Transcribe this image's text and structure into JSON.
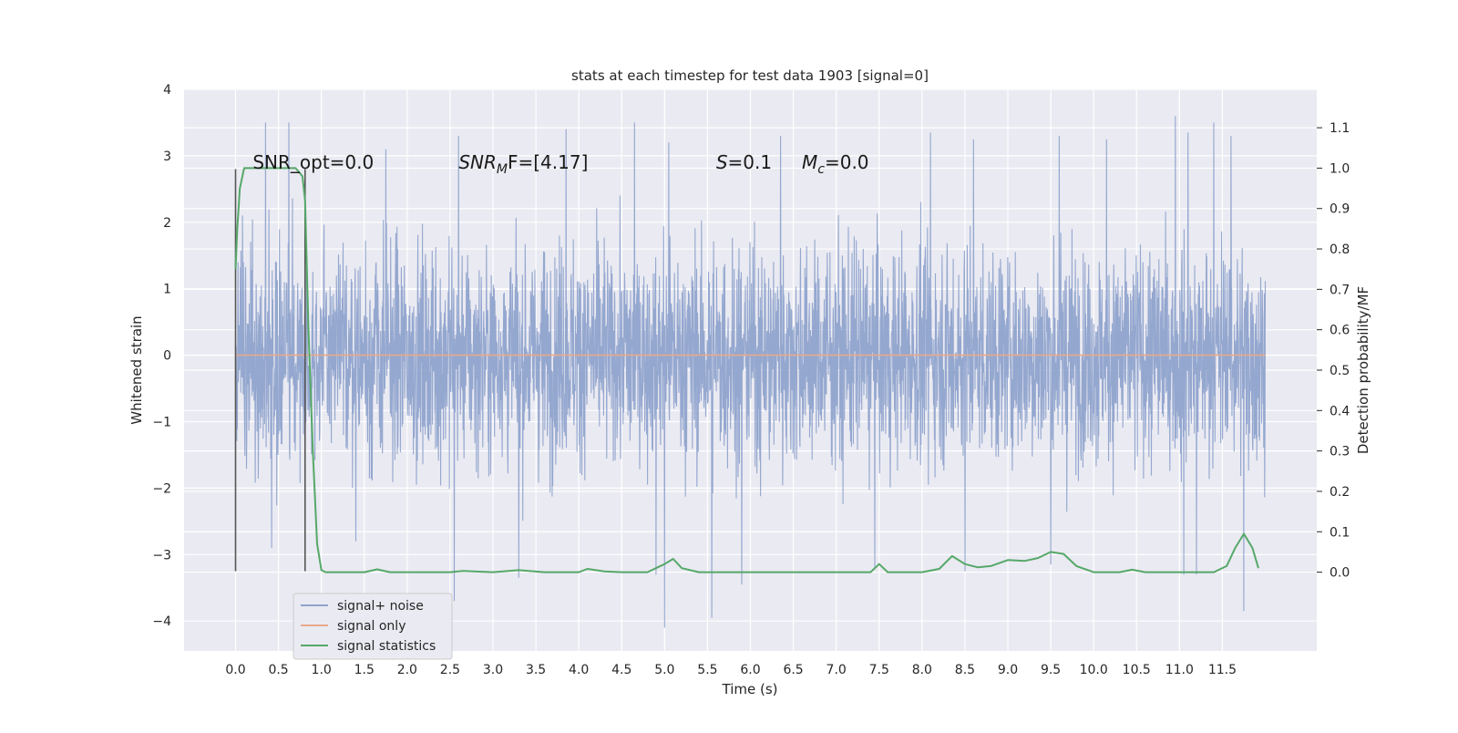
{
  "chart_data": {
    "type": "line",
    "title": "stats at each timestep for test data 1903 [signal=0]",
    "xlabel": "Time (s)",
    "ylabel_left": "Whitened strain",
    "ylabel_right": "Detection probability/MF",
    "xlim": [
      -0.6,
      12.6
    ],
    "ylim_left": [
      -4.45,
      4.0
    ],
    "ylim_right": [
      -0.195,
      1.195
    ],
    "x_ticks": [
      "0.0",
      "0.5",
      "1.0",
      "1.5",
      "2.0",
      "2.5",
      "3.0",
      "3.5",
      "4.0",
      "4.5",
      "5.0",
      "5.5",
      "6.0",
      "6.5",
      "7.0",
      "7.5",
      "8.0",
      "8.5",
      "9.0",
      "9.5",
      "10.0",
      "10.5",
      "11.0",
      "11.5"
    ],
    "x_tick_values": [
      0.0,
      0.5,
      1.0,
      1.5,
      2.0,
      2.5,
      3.0,
      3.5,
      4.0,
      4.5,
      5.0,
      5.5,
      6.0,
      6.5,
      7.0,
      7.5,
      8.0,
      8.5,
      9.0,
      9.5,
      10.0,
      10.5,
      11.0,
      11.5
    ],
    "y_ticks_left": [
      "−4",
      "−3",
      "−2",
      "−1",
      "0",
      "1",
      "2",
      "3",
      "4"
    ],
    "y_tick_values_left": [
      -4,
      -3,
      -2,
      -1,
      0,
      1,
      2,
      3,
      4
    ],
    "y_ticks_right": [
      "0.0",
      "0.1",
      "0.2",
      "0.3",
      "0.4",
      "0.5",
      "0.6",
      "0.7",
      "0.8",
      "0.9",
      "1.0",
      "1.1"
    ],
    "y_tick_values_right": [
      0.0,
      0.1,
      0.2,
      0.3,
      0.4,
      0.5,
      0.6,
      0.7,
      0.8,
      0.9,
      1.0,
      1.1
    ],
    "grid": true,
    "legend_position": "lower-left",
    "legend": [
      "signal+ noise",
      "signal only",
      "signal statistics"
    ],
    "series": [
      {
        "name": "signal+ noise",
        "color": "#8fa3cc",
        "axis": "left",
        "x_range": [
          0.0,
          12.0
        ],
        "typical_envelope": [
          -2.2,
          2.2
        ],
        "extremes": [
          -4.1,
          3.6
        ],
        "peak_samples": [
          [
            0.35,
            3.5
          ],
          [
            0.62,
            3.5
          ],
          [
            1.75,
            3.1
          ],
          [
            2.6,
            3.3
          ],
          [
            3.85,
            3.4
          ],
          [
            4.65,
            3.5
          ],
          [
            5.05,
            3.2
          ],
          [
            6.35,
            3.3
          ],
          [
            8.1,
            3.35
          ],
          [
            8.6,
            3.25
          ],
          [
            9.6,
            3.3
          ],
          [
            10.15,
            3.25
          ],
          [
            10.95,
            3.6
          ],
          [
            11.1,
            3.35
          ],
          [
            11.4,
            3.5
          ],
          [
            11.6,
            3.3
          ]
        ],
        "trough_samples": [
          [
            0.42,
            -2.9
          ],
          [
            1.4,
            -2.8
          ],
          [
            2.55,
            -3.7
          ],
          [
            3.3,
            -3.35
          ],
          [
            4.9,
            -3.3
          ],
          [
            5.0,
            -4.1
          ],
          [
            5.55,
            -3.95
          ],
          [
            5.9,
            -3.45
          ],
          [
            7.45,
            -3.2
          ],
          [
            8.5,
            -3.25
          ],
          [
            9.5,
            -3.15
          ],
          [
            11.05,
            -3.3
          ],
          [
            11.2,
            -3.3
          ],
          [
            11.75,
            -3.85
          ]
        ]
      },
      {
        "name": "signal only",
        "color": "#e8a98a",
        "axis": "left",
        "x": [
          0.0,
          12.0
        ],
        "values": [
          0.0,
          0.0
        ]
      },
      {
        "name": "signal statistics",
        "color": "#55a868",
        "axis": "right",
        "x": [
          0.0,
          0.02,
          0.05,
          0.1,
          0.15,
          0.2,
          0.3,
          0.45,
          0.6,
          0.7,
          0.78,
          0.81,
          0.85,
          0.9,
          0.95,
          1.0,
          1.05,
          1.2,
          1.5,
          1.65,
          1.8,
          2.0,
          2.5,
          2.65,
          3.0,
          3.3,
          3.6,
          4.0,
          4.1,
          4.3,
          4.5,
          4.8,
          5.0,
          5.1,
          5.2,
          5.4,
          5.7,
          6.0,
          6.5,
          7.0,
          7.4,
          7.5,
          7.6,
          7.8,
          8.0,
          8.2,
          8.35,
          8.5,
          8.65,
          8.8,
          9.0,
          9.2,
          9.35,
          9.5,
          9.65,
          9.8,
          10.0,
          10.3,
          10.45,
          10.6,
          11.0,
          11.4,
          11.55,
          11.65,
          11.75,
          11.85,
          11.92
        ],
        "values": [
          0.75,
          0.85,
          0.95,
          1.0,
          1.0,
          1.0,
          1.0,
          1.0,
          1.0,
          1.0,
          0.98,
          0.92,
          0.6,
          0.3,
          0.07,
          0.005,
          0.0,
          0.0,
          0.0,
          0.007,
          0.0,
          0.0,
          0.0,
          0.003,
          0.0,
          0.005,
          0.0,
          0.0,
          0.008,
          0.002,
          0.0,
          0.0,
          0.02,
          0.033,
          0.01,
          0.0,
          0.0,
          0.0,
          0.0,
          0.0,
          0.0,
          0.02,
          0.0,
          0.0,
          0.0,
          0.008,
          0.04,
          0.02,
          0.012,
          0.015,
          0.03,
          0.028,
          0.035,
          0.05,
          0.045,
          0.015,
          0.0,
          0.0,
          0.006,
          0.0,
          0.0,
          0.0,
          0.015,
          0.06,
          0.095,
          0.06,
          0.01
        ]
      }
    ],
    "vertical_markers": [
      {
        "x": 0.0,
        "y_range": [
          -3.25,
          2.8
        ],
        "color": "#555555"
      },
      {
        "x": 0.81,
        "y_range": [
          -3.25,
          2.8
        ],
        "color": "#555555"
      }
    ],
    "annotations": [
      {
        "id": "snr-opt",
        "text": "SNR_opt=0.0",
        "x": 0.2,
        "y": 2.9
      },
      {
        "id": "snr-mf",
        "base": "SNR",
        "sub": "M",
        "rest": "F=[4.17]",
        "x": 2.6,
        "y": 2.9
      },
      {
        "id": "s-val",
        "base": "S",
        "rest": "=0.1",
        "x": 5.6,
        "y": 2.9
      },
      {
        "id": "mc-val",
        "base": "M",
        "sub": "c",
        "rest": "=0.0",
        "x": 6.6,
        "y": 2.9
      }
    ]
  }
}
